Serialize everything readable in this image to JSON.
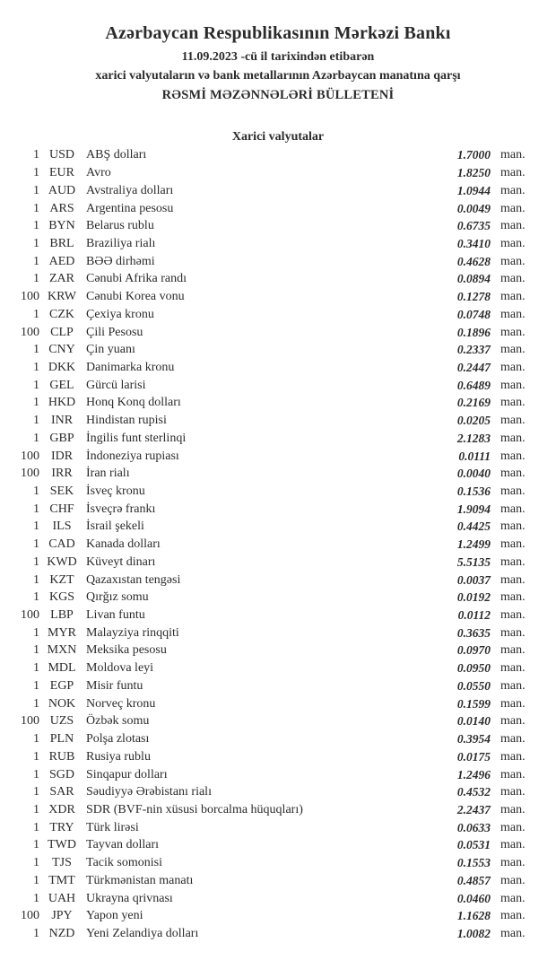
{
  "document": {
    "bank_name": "Azərbaycan Respublikasının Mərkəzi Bankı",
    "effective_date_line": "11.09.2023 -cü il tarixindən etibarən",
    "scope_line": "xarici valyutaların və bank metallarının Azərbaycan manatına qarşı",
    "bulletin_title": "RƏSMİ MƏZƏNNƏLƏRİ BÜLLETENİ",
    "section_title": "Xarici valyutalar"
  },
  "table": {
    "unit_label": "man.",
    "rates": [
      {
        "qty": "1",
        "code": "USD",
        "name": "ABŞ dolları",
        "rate": "1.7000"
      },
      {
        "qty": "1",
        "code": "EUR",
        "name": "Avro",
        "rate": "1.8250"
      },
      {
        "qty": "1",
        "code": "AUD",
        "name": "Avstraliya dolları",
        "rate": "1.0944"
      },
      {
        "qty": "1",
        "code": "ARS",
        "name": "Argentina pesosu",
        "rate": "0.0049"
      },
      {
        "qty": "1",
        "code": "BYN",
        "name": "Belarus rublu",
        "rate": "0.6735"
      },
      {
        "qty": "1",
        "code": "BRL",
        "name": "Braziliya rialı",
        "rate": "0.3410"
      },
      {
        "qty": "1",
        "code": "AED",
        "name": "BƏƏ dirhəmi",
        "rate": "0.4628"
      },
      {
        "qty": "1",
        "code": "ZAR",
        "name": "Cənubi Afrika randı",
        "rate": "0.0894"
      },
      {
        "qty": "100",
        "code": "KRW",
        "name": "Cənubi Korea vonu",
        "rate": "0.1278"
      },
      {
        "qty": "1",
        "code": "CZK",
        "name": "Çexiya kronu",
        "rate": "0.0748"
      },
      {
        "qty": "100",
        "code": "CLP",
        "name": "Çili Pesosu",
        "rate": "0.1896"
      },
      {
        "qty": "1",
        "code": "CNY",
        "name": "Çin yuanı",
        "rate": "0.2337"
      },
      {
        "qty": "1",
        "code": "DKK",
        "name": "Danimarka kronu",
        "rate": "0.2447"
      },
      {
        "qty": "1",
        "code": "GEL",
        "name": "Gürcü larisi",
        "rate": "0.6489"
      },
      {
        "qty": "1",
        "code": "HKD",
        "name": "Honq Konq dolları",
        "rate": "0.2169"
      },
      {
        "qty": "1",
        "code": "INR",
        "name": "Hindistan rupisi",
        "rate": "0.0205"
      },
      {
        "qty": "1",
        "code": "GBP",
        "name": "İngilis funt sterlinqi",
        "rate": "2.1283"
      },
      {
        "qty": "100",
        "code": "IDR",
        "name": "İndoneziya rupiası",
        "rate": "0.0111"
      },
      {
        "qty": "100",
        "code": "IRR",
        "name": "İran rialı",
        "rate": "0.0040"
      },
      {
        "qty": "1",
        "code": "SEK",
        "name": "İsveç kronu",
        "rate": "0.1536"
      },
      {
        "qty": "1",
        "code": "CHF",
        "name": "İsveçrə frankı",
        "rate": "1.9094"
      },
      {
        "qty": "1",
        "code": "ILS",
        "name": "İsrail şekeli",
        "rate": "0.4425"
      },
      {
        "qty": "1",
        "code": "CAD",
        "name": "Kanada dolları",
        "rate": "1.2499"
      },
      {
        "qty": "1",
        "code": "KWD",
        "name": "Küveyt dinarı",
        "rate": "5.5135"
      },
      {
        "qty": "1",
        "code": "KZT",
        "name": "Qazaxıstan tengəsi",
        "rate": "0.0037"
      },
      {
        "qty": "1",
        "code": "KGS",
        "name": "Qırğız somu",
        "rate": "0.0192"
      },
      {
        "qty": "100",
        "code": "LBP",
        "name": "Livan funtu",
        "rate": "0.0112"
      },
      {
        "qty": "1",
        "code": "MYR",
        "name": "Malayziya rinqqiti",
        "rate": "0.3635"
      },
      {
        "qty": "1",
        "code": "MXN",
        "name": "Meksika pesosu",
        "rate": "0.0970"
      },
      {
        "qty": "1",
        "code": "MDL",
        "name": "Moldova leyi",
        "rate": "0.0950"
      },
      {
        "qty": "1",
        "code": "EGP",
        "name": "Misir funtu",
        "rate": "0.0550"
      },
      {
        "qty": "1",
        "code": "NOK",
        "name": "Norveç kronu",
        "rate": "0.1599"
      },
      {
        "qty": "100",
        "code": "UZS",
        "name": "Özbək somu",
        "rate": "0.0140"
      },
      {
        "qty": "1",
        "code": "PLN",
        "name": "Polşa zlotası",
        "rate": "0.3954"
      },
      {
        "qty": "1",
        "code": "RUB",
        "name": "Rusiya rublu",
        "rate": "0.0175"
      },
      {
        "qty": "1",
        "code": "SGD",
        "name": "Sinqapur dolları",
        "rate": "1.2496"
      },
      {
        "qty": "1",
        "code": "SAR",
        "name": "Səudiyyə Ərəbistanı rialı",
        "rate": "0.4532"
      },
      {
        "qty": "1",
        "code": "XDR",
        "name": "SDR (BVF-nin xüsusi borcalma hüquqları)",
        "rate": "2.2437"
      },
      {
        "qty": "1",
        "code": "TRY",
        "name": "Türk lirəsi",
        "rate": "0.0633"
      },
      {
        "qty": "1",
        "code": "TWD",
        "name": "Tayvan dolları",
        "rate": "0.0531"
      },
      {
        "qty": "1",
        "code": "TJS",
        "name": "Tacik somonisi",
        "rate": "0.1553"
      },
      {
        "qty": "1",
        "code": "TMT",
        "name": "Türkmənistan manatı",
        "rate": "0.4857"
      },
      {
        "qty": "1",
        "code": "UAH",
        "name": "Ukrayna qrivnası",
        "rate": "0.0460"
      },
      {
        "qty": "100",
        "code": "JPY",
        "name": "Yapon yeni",
        "rate": "1.1628"
      },
      {
        "qty": "1",
        "code": "NZD",
        "name": "Yeni Zelandiya dolları",
        "rate": "1.0082"
      }
    ]
  },
  "colors": {
    "text": "#2b2b2e",
    "background": "#ffffff"
  }
}
